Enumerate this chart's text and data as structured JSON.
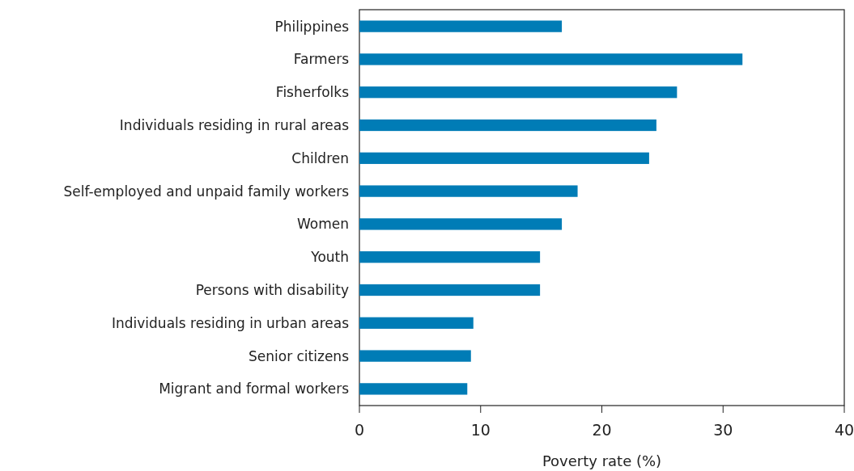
{
  "chart_data": {
    "type": "bar",
    "orientation": "horizontal",
    "xlabel": "Poverty rate (%)",
    "categories": [
      "Philippines",
      "Farmers",
      "Fisherfolks",
      "Individuals residing in rural areas",
      "Children",
      "Self-employed and unpaid family workers",
      "Women",
      "Youth",
      "Persons with disability",
      "Individuals residing in urban areas",
      "Senior citizens",
      "Migrant and formal workers"
    ],
    "values": [
      16.7,
      31.6,
      26.2,
      24.5,
      23.9,
      18.0,
      16.7,
      14.9,
      14.9,
      9.4,
      9.2,
      8.9
    ],
    "color": "#007cb6",
    "xlim": [
      0,
      40
    ],
    "xticks": [
      0,
      10,
      20,
      30,
      40
    ],
    "grid": false
  }
}
